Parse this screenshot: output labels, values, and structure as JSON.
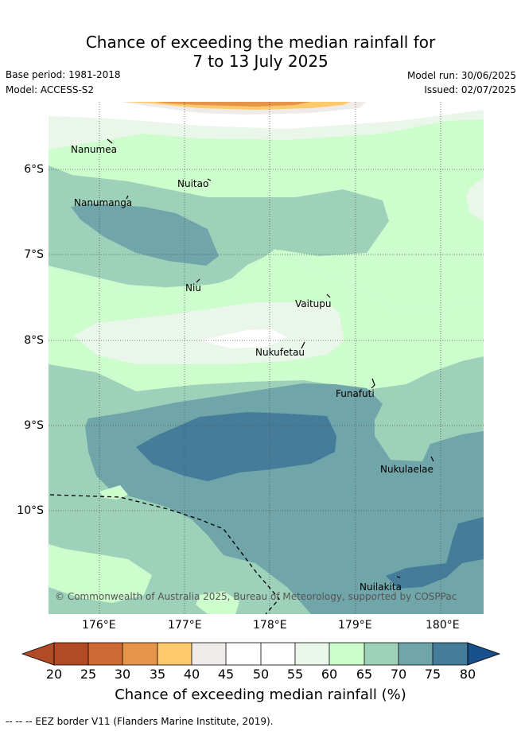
{
  "title": {
    "line1": "Chance of exceeding the median rainfall for",
    "line2": "7 to 13 July 2025"
  },
  "meta": {
    "base_period": "Base period: 1981-2018",
    "model": "Model: ACCESS-S2",
    "model_run": "Model run: 30/06/2025",
    "issued": "Issued: 02/07/2025"
  },
  "map": {
    "x_ticks": [
      "176°E",
      "177°E",
      "178°E",
      "179°E",
      "180°E"
    ],
    "y_ticks": [
      "6°S",
      "7°S",
      "8°S",
      "9°S",
      "10°S"
    ],
    "places": [
      "Nanumea",
      "Nuitao",
      "Nanumanga",
      "Niu",
      "Vaitupu",
      "Nukufetau",
      "Funafuti",
      "Nukulaelae",
      "Nuilakita"
    ],
    "copyright": "© Commonwealth of Australia 2025, Bureau of Meteorology, supported by COSPPac",
    "colors": {
      "c20_25": "#b34a26",
      "c25_30": "#d06a35",
      "c30_35": "#e5944a",
      "c35_40": "#fdca6b",
      "c40_45": "#efebe8",
      "c45_50": "#ffffff",
      "c50_55": "#ffffff",
      "c55_60": "#ebf6ea",
      "c60_65": "#cdfdcd",
      "c65_70": "#9ed1b9",
      "c70_75": "#70a6a9",
      "c75_80": "#447c9a",
      "c80_plus": "#17508a"
    }
  },
  "colorbar": {
    "labels": [
      "20",
      "25",
      "30",
      "35",
      "40",
      "45",
      "50",
      "55",
      "60",
      "65",
      "70",
      "75",
      "80"
    ],
    "title": "Chance of exceeding median rainfall (%)"
  },
  "legend": {
    "eez": "--  --  -- EEZ border V11 (Flanders Marine Institute, 2019)."
  }
}
